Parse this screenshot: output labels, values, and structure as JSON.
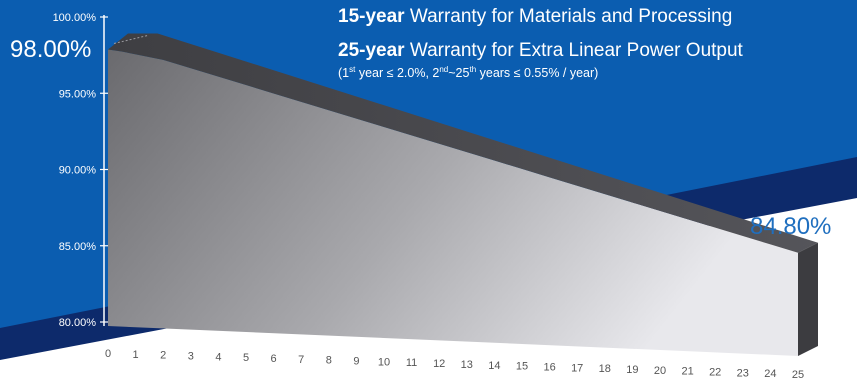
{
  "header": {
    "line1_bold": "15-year",
    "line1_rest": "Warranty for Materials and Processing",
    "line2_bold": "25-year",
    "line2_rest": "Warranty for Extra Linear Power Output",
    "line3_p1": "(1",
    "line3_sup1": "st",
    "line3_p2": " year ≤ 2.0%, 2",
    "line3_sup2": "nd",
    "line3_p3": "~25",
    "line3_sup3": "th",
    "line3_p4": " years ≤ 0.55% / year)"
  },
  "callouts": {
    "start": "98.00%",
    "end": "84.80%"
  },
  "colors": {
    "background_blue": "#0b5db0",
    "navy_band": "#0d2a6b",
    "bar_light": "#e4e4e8",
    "bar_dark": "#6a6a6e",
    "bar_top": "#4a4a4e",
    "bar_side": "#3a3a3e"
  },
  "chart_data": {
    "type": "area",
    "title": "",
    "xlabel": "",
    "ylabel": "",
    "x": [
      0,
      1,
      2,
      3,
      4,
      5,
      6,
      7,
      8,
      9,
      10,
      11,
      12,
      13,
      14,
      15,
      16,
      17,
      18,
      19,
      20,
      21,
      22,
      23,
      24,
      25
    ],
    "x_tick_labels": [
      "0",
      "1",
      "2",
      "3",
      "4",
      "5",
      "6",
      "7",
      "8",
      "9",
      "10",
      "11",
      "12",
      "13",
      "14",
      "15",
      "16",
      "17",
      "18",
      "19",
      "20",
      "21",
      "22",
      "23",
      "24",
      "25"
    ],
    "y_tick_labels": [
      "100.00%",
      "95.00%",
      "90.00%",
      "85.00%",
      "80.00%"
    ],
    "y_ticks": [
      100,
      95,
      90,
      85,
      80
    ],
    "ylim": [
      80,
      100
    ],
    "xlim": [
      0,
      25
    ],
    "series": [
      {
        "values": [
          100,
          98.0,
          97.45,
          96.9,
          96.35,
          95.8,
          95.25,
          94.7,
          94.15,
          93.6,
          93.05,
          92.5,
          91.95,
          91.4,
          90.85,
          90.3,
          89.75,
          89.2,
          88.65,
          88.1,
          87.55,
          87.0,
          86.45,
          85.9,
          85.35,
          84.8
        ]
      }
    ],
    "grid": false,
    "style": "3d-bar"
  }
}
